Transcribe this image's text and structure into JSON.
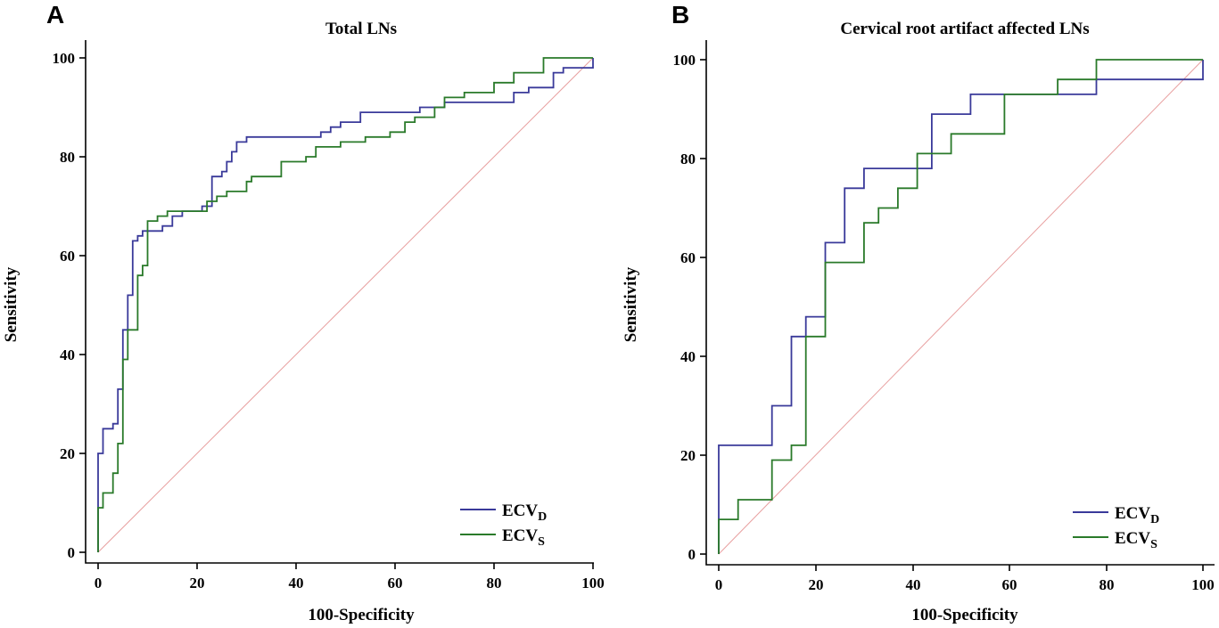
{
  "chart_data": [
    {
      "panel": "A",
      "type": "line",
      "title": "Total LNs",
      "xlabel": "100-Specificity",
      "ylabel": "Sensitivity",
      "xlim": [
        0,
        100
      ],
      "ylim": [
        0,
        100
      ],
      "xticks": [
        "0",
        "20",
        "40",
        "60",
        "80",
        "100"
      ],
      "yticks": [
        "0",
        "20",
        "40",
        "60",
        "80",
        "100"
      ],
      "legend_position": "bottom-right",
      "reference_line": [
        [
          0,
          0
        ],
        [
          100,
          100
        ]
      ],
      "series": [
        {
          "name": "ECV",
          "subscript": "D",
          "color": "#3a3a9a",
          "points": [
            [
              0,
              0
            ],
            [
              0,
              20
            ],
            [
              1,
              20
            ],
            [
              1,
              25
            ],
            [
              3,
              25
            ],
            [
              3,
              26
            ],
            [
              4,
              26
            ],
            [
              4,
              33
            ],
            [
              5,
              33
            ],
            [
              5,
              45
            ],
            [
              6,
              45
            ],
            [
              6,
              52
            ],
            [
              7,
              52
            ],
            [
              7,
              63
            ],
            [
              8,
              63
            ],
            [
              8,
              64
            ],
            [
              9,
              64
            ],
            [
              9,
              65
            ],
            [
              11,
              65
            ],
            [
              11,
              65
            ],
            [
              13,
              65
            ],
            [
              13,
              66
            ],
            [
              15,
              66
            ],
            [
              15,
              68
            ],
            [
              17,
              68
            ],
            [
              17,
              69
            ],
            [
              21,
              69
            ],
            [
              21,
              70
            ],
            [
              23,
              70
            ],
            [
              23,
              76
            ],
            [
              25,
              76
            ],
            [
              25,
              77
            ],
            [
              26,
              77
            ],
            [
              26,
              79
            ],
            [
              27,
              79
            ],
            [
              27,
              81
            ],
            [
              28,
              81
            ],
            [
              28,
              83
            ],
            [
              30,
              83
            ],
            [
              30,
              84
            ],
            [
              45,
              84
            ],
            [
              45,
              85
            ],
            [
              47,
              85
            ],
            [
              47,
              86
            ],
            [
              49,
              86
            ],
            [
              49,
              87
            ],
            [
              53,
              87
            ],
            [
              53,
              89
            ],
            [
              65,
              89
            ],
            [
              65,
              90
            ],
            [
              70,
              90
            ],
            [
              70,
              91
            ],
            [
              84,
              91
            ],
            [
              84,
              93
            ],
            [
              87,
              93
            ],
            [
              87,
              94
            ],
            [
              92,
              94
            ],
            [
              92,
              97
            ],
            [
              94,
              97
            ],
            [
              94,
              98
            ],
            [
              100,
              98
            ],
            [
              100,
              100
            ]
          ]
        },
        {
          "name": "ECV",
          "subscript": "S",
          "color": "#2a7a2a",
          "points": [
            [
              0,
              0
            ],
            [
              0,
              9
            ],
            [
              1,
              9
            ],
            [
              1,
              12
            ],
            [
              3,
              12
            ],
            [
              3,
              16
            ],
            [
              4,
              16
            ],
            [
              4,
              22
            ],
            [
              5,
              22
            ],
            [
              5,
              39
            ],
            [
              6,
              39
            ],
            [
              6,
              45
            ],
            [
              8,
              45
            ],
            [
              8,
              56
            ],
            [
              9,
              56
            ],
            [
              9,
              58
            ],
            [
              10,
              58
            ],
            [
              10,
              67
            ],
            [
              12,
              67
            ],
            [
              12,
              68
            ],
            [
              14,
              68
            ],
            [
              14,
              69
            ],
            [
              22,
              69
            ],
            [
              22,
              71
            ],
            [
              24,
              71
            ],
            [
              24,
              72
            ],
            [
              26,
              72
            ],
            [
              26,
              73
            ],
            [
              30,
              73
            ],
            [
              30,
              75
            ],
            [
              31,
              75
            ],
            [
              31,
              76
            ],
            [
              37,
              76
            ],
            [
              37,
              79
            ],
            [
              42,
              79
            ],
            [
              42,
              80
            ],
            [
              44,
              80
            ],
            [
              44,
              82
            ],
            [
              49,
              82
            ],
            [
              49,
              83
            ],
            [
              54,
              83
            ],
            [
              54,
              84
            ],
            [
              59,
              84
            ],
            [
              59,
              85
            ],
            [
              62,
              85
            ],
            [
              62,
              87
            ],
            [
              64,
              87
            ],
            [
              64,
              88
            ],
            [
              68,
              88
            ],
            [
              68,
              90
            ],
            [
              70,
              90
            ],
            [
              70,
              92
            ],
            [
              74,
              92
            ],
            [
              74,
              93
            ],
            [
              80,
              93
            ],
            [
              80,
              95
            ],
            [
              84,
              95
            ],
            [
              84,
              97
            ],
            [
              90,
              97
            ],
            [
              90,
              100
            ],
            [
              100,
              100
            ]
          ]
        }
      ]
    },
    {
      "panel": "B",
      "type": "line",
      "title": "Cervical root artifact affected LNs",
      "xlabel": "100-Specificity",
      "ylabel": "Sensitivity",
      "xlim": [
        0,
        100
      ],
      "ylim": [
        0,
        100
      ],
      "xticks": [
        "0",
        "20",
        "40",
        "60",
        "80",
        "100"
      ],
      "yticks": [
        "0",
        "20",
        "40",
        "60",
        "80",
        "100"
      ],
      "legend_position": "bottom-right",
      "reference_line": [
        [
          0,
          0
        ],
        [
          100,
          100
        ]
      ],
      "series": [
        {
          "name": "ECV",
          "subscript": "D",
          "color": "#3a3a9a",
          "points": [
            [
              0,
              0
            ],
            [
              0,
              22
            ],
            [
              11,
              22
            ],
            [
              11,
              30
            ],
            [
              15,
              30
            ],
            [
              15,
              44
            ],
            [
              18,
              44
            ],
            [
              18,
              48
            ],
            [
              22,
              48
            ],
            [
              22,
              63
            ],
            [
              26,
              63
            ],
            [
              26,
              74
            ],
            [
              30,
              74
            ],
            [
              30,
              78
            ],
            [
              44,
              78
            ],
            [
              44,
              89
            ],
            [
              52,
              89
            ],
            [
              52,
              93
            ],
            [
              78,
              93
            ],
            [
              78,
              96
            ],
            [
              100,
              96
            ],
            [
              100,
              100
            ]
          ]
        },
        {
          "name": "ECV",
          "subscript": "S",
          "color": "#2a7a2a",
          "points": [
            [
              0,
              0
            ],
            [
              0,
              7
            ],
            [
              4,
              7
            ],
            [
              4,
              11
            ],
            [
              11,
              11
            ],
            [
              11,
              19
            ],
            [
              15,
              19
            ],
            [
              15,
              22
            ],
            [
              18,
              22
            ],
            [
              18,
              44
            ],
            [
              22,
              44
            ],
            [
              22,
              59
            ],
            [
              30,
              59
            ],
            [
              30,
              67
            ],
            [
              33,
              67
            ],
            [
              33,
              70
            ],
            [
              37,
              70
            ],
            [
              37,
              74
            ],
            [
              41,
              74
            ],
            [
              41,
              81
            ],
            [
              48,
              81
            ],
            [
              48,
              85
            ],
            [
              59,
              85
            ],
            [
              59,
              93
            ],
            [
              70,
              93
            ],
            [
              70,
              96
            ],
            [
              78,
              96
            ],
            [
              78,
              100
            ],
            [
              100,
              100
            ]
          ]
        }
      ]
    }
  ]
}
